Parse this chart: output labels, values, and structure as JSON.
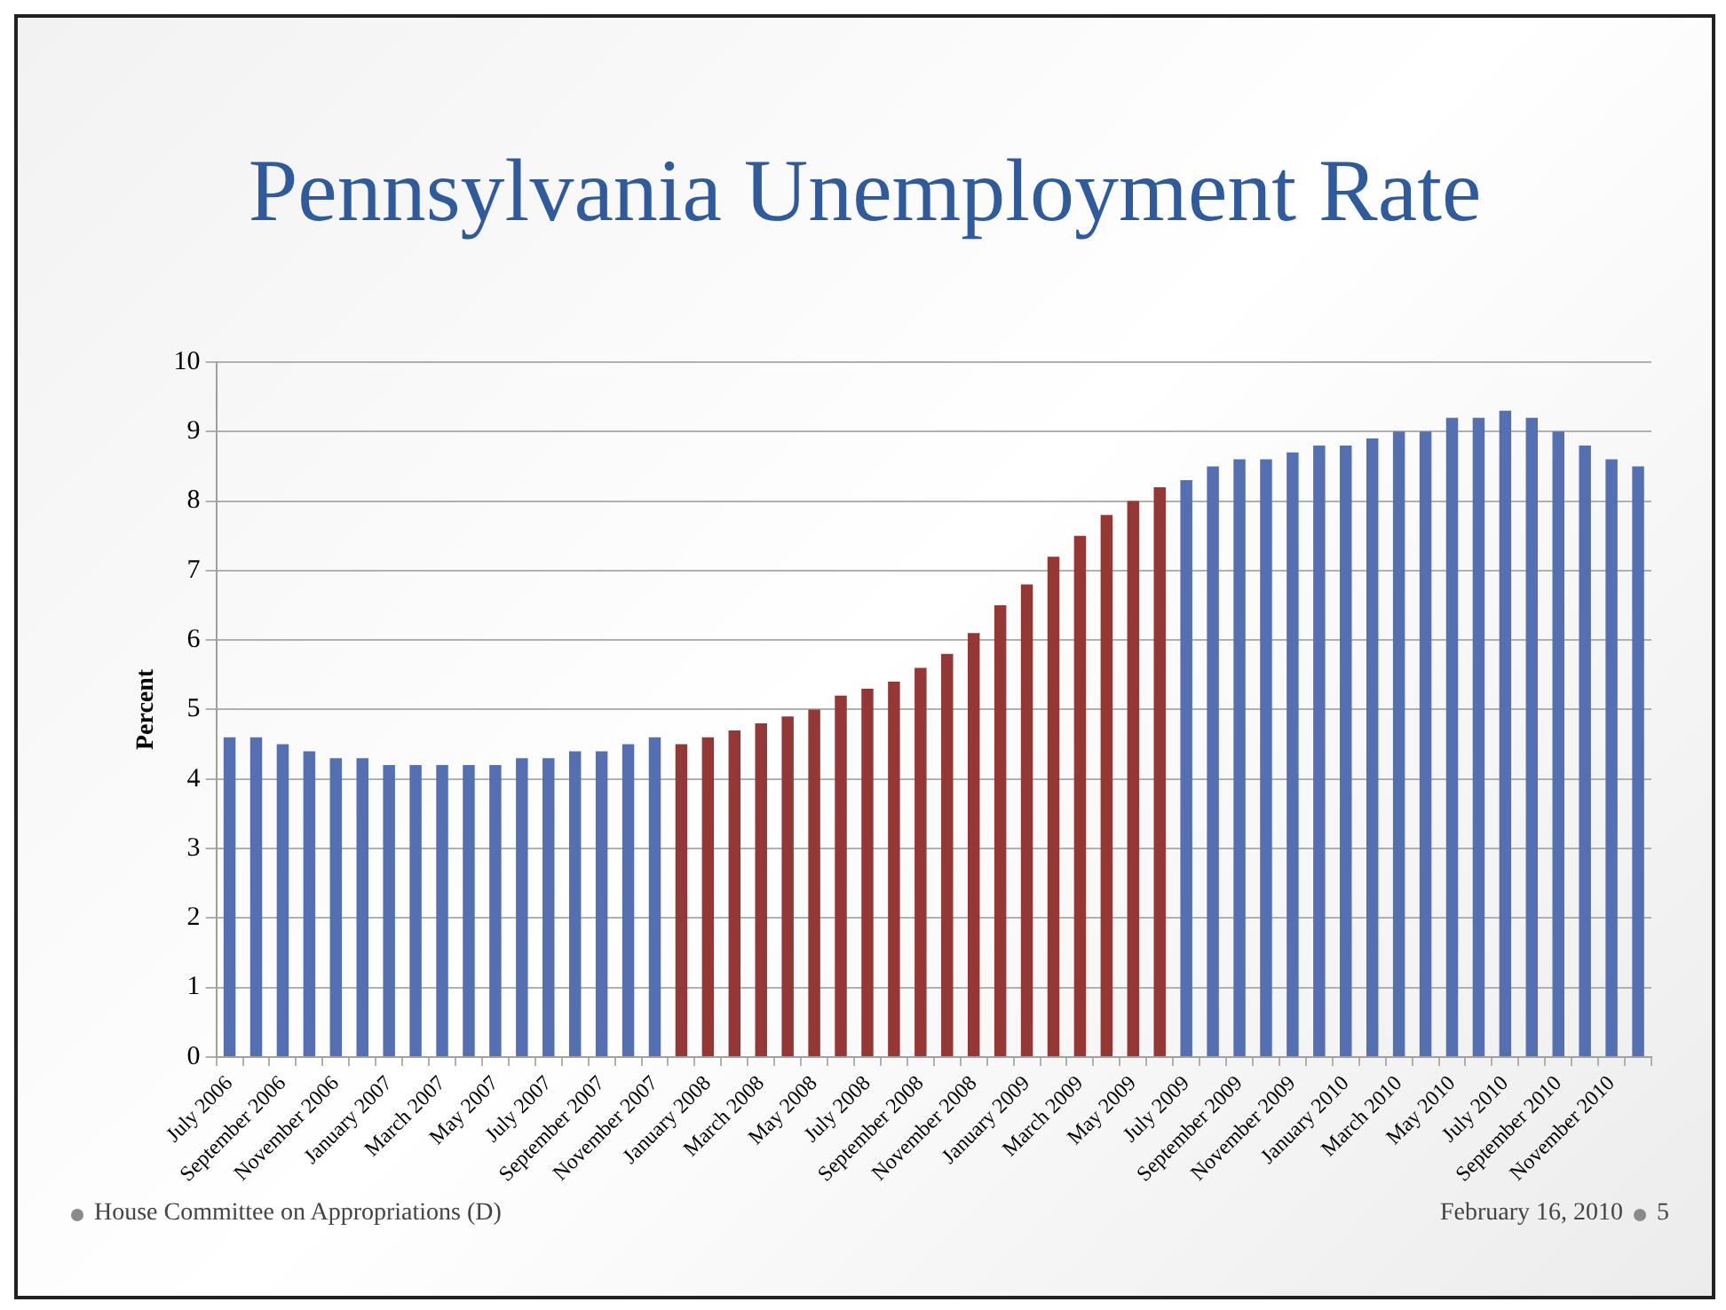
{
  "chart_data": {
    "type": "bar",
    "title": "Pennsylvania Unemployment Rate",
    "ylabel": "Percent",
    "categories": [
      "July 2006",
      null,
      "September 2006",
      null,
      "November 2006",
      null,
      "January 2007",
      null,
      "March 2007",
      null,
      "May 2007",
      null,
      "July 2007",
      null,
      "September 2007",
      null,
      "November 2007",
      null,
      "January 2008",
      null,
      "March 2008",
      null,
      "May 2008",
      null,
      "July 2008",
      null,
      "September 2008",
      null,
      "November 2008",
      null,
      "January 2009",
      null,
      "March 2009",
      null,
      "May 2009",
      null,
      "July 2009",
      null,
      "September 2009",
      null,
      "November 2009",
      null,
      "January 2010",
      null,
      "March 2010",
      null,
      "May 2010",
      null,
      "July 2010",
      null,
      "September 2010",
      null,
      "November 2010",
      null
    ],
    "values": [
      4.6,
      4.6,
      4.5,
      4.4,
      4.3,
      4.3,
      4.2,
      4.2,
      4.2,
      4.2,
      4.2,
      4.3,
      4.3,
      4.4,
      4.4,
      4.5,
      4.6,
      4.5,
      4.6,
      4.7,
      4.8,
      4.9,
      5.0,
      5.2,
      5.3,
      5.4,
      5.6,
      5.8,
      6.1,
      6.5,
      6.8,
      7.2,
      7.5,
      7.8,
      8.0,
      8.2,
      8.3,
      8.5,
      8.6,
      8.6,
      8.7,
      8.8,
      8.8,
      8.9,
      9.0,
      9.0,
      9.2,
      9.2,
      9.3,
      9.2,
      9.0,
      8.8,
      8.6,
      8.5
    ],
    "colors": [
      "#5470b2",
      "#5470b2",
      "#5470b2",
      "#5470b2",
      "#5470b2",
      "#5470b2",
      "#5470b2",
      "#5470b2",
      "#5470b2",
      "#5470b2",
      "#5470b2",
      "#5470b2",
      "#5470b2",
      "#5470b2",
      "#5470b2",
      "#5470b2",
      "#5470b2",
      "#953735",
      "#953735",
      "#953735",
      "#953735",
      "#953735",
      "#953735",
      "#953735",
      "#953735",
      "#953735",
      "#953735",
      "#953735",
      "#953735",
      "#953735",
      "#953735",
      "#953735",
      "#953735",
      "#953735",
      "#953735",
      "#953735",
      "#5470b2",
      "#5470b2",
      "#5470b2",
      "#5470b2",
      "#5470b2",
      "#5470b2",
      "#5470b2",
      "#5470b2",
      "#5470b2",
      "#5470b2",
      "#5470b2",
      "#5470b2",
      "#5470b2",
      "#5470b2",
      "#5470b2",
      "#5470b2",
      "#5470b2",
      "#5470b2"
    ],
    "ylim": [
      0,
      10
    ],
    "yticks": [
      0,
      1,
      2,
      3,
      4,
      5,
      6,
      7,
      8,
      9,
      10
    ],
    "grid": "y",
    "legend": false,
    "annotations": [
      "House Committee on Appropriations (D)",
      "February 16, 2010",
      "5"
    ]
  }
}
